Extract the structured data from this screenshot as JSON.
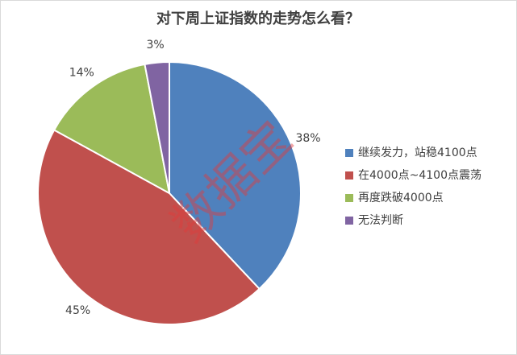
{
  "chart_data": {
    "type": "pie",
    "title": "对下周上证指数的走势怎么看？",
    "watermark": "数据宝",
    "categories": [
      "继续发力，站稳4100点",
      "在4000点~4100点震荡",
      "再度跌破4000点",
      "无法判断"
    ],
    "values": [
      38,
      45,
      14,
      3
    ],
    "value_labels": [
      "38%",
      "45%",
      "14%",
      "3%"
    ],
    "colors": [
      "#4f81bd",
      "#c0504d",
      "#9bbb59",
      "#8064a2"
    ],
    "legend": "right"
  }
}
